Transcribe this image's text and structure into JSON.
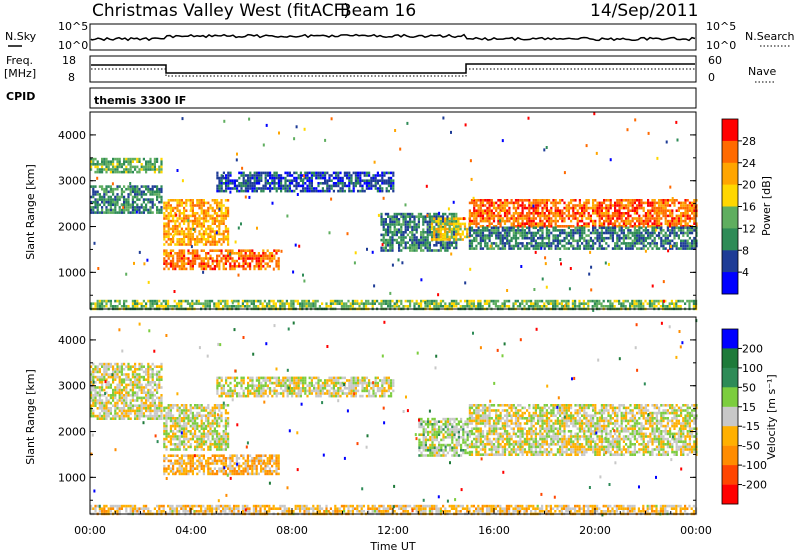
{
  "header": {
    "site": "Christmas Valley West (fitACF)",
    "beam": "Beam 16",
    "date": "14/Sep/2011"
  },
  "top_panels": {
    "nsky_label": "N.Sky",
    "nsky_ticks": [
      "10^5",
      "10^0"
    ],
    "nsearch_label": "N.Search",
    "nsearch_ticks": [
      "10^5",
      "10^0"
    ],
    "freq_label_1": "Freq.",
    "freq_label_2": "[MHz]",
    "freq_ticks": [
      "18",
      "8"
    ],
    "nave_label": "Nave",
    "nave_ticks": [
      "60",
      "0"
    ],
    "cpid_label": "CPID",
    "cpid_value": "themis 3300 IF"
  },
  "colors": {
    "power_scale": [
      "#0000ff",
      "#1e3c96",
      "#2e8b57",
      "#5fae5f",
      "#ffd700",
      "#ffa500",
      "#ff6a00",
      "#ff0000"
    ],
    "velocity_scale": [
      "#ff0000",
      "#ff4500",
      "#ff8c00",
      "#ffb000",
      "#c8c8c8",
      "#7ccd3e",
      "#2e8b57",
      "#1e7a3a",
      "#0000ff"
    ]
  },
  "chart_data": [
    {
      "type": "heatmap",
      "name": "power",
      "ylabel": "Slant Range [km]",
      "y_ticks": [
        "1000",
        "2000",
        "3000",
        "4000"
      ],
      "ylim": [
        200,
        4500
      ],
      "xlim": [
        0,
        24
      ],
      "colorbar_label": "Power [dB]",
      "colorbar_ticks": [
        "4",
        "8",
        "12",
        "16",
        "20",
        "24",
        "28"
      ],
      "regions": [
        {
          "t0": 0.0,
          "t1": 2.8,
          "r0": 3200,
          "r1": 3500,
          "value": 13
        },
        {
          "t0": 0.0,
          "t1": 2.8,
          "r0": 2300,
          "r1": 2900,
          "value": 10
        },
        {
          "t0": 2.9,
          "t1": 5.5,
          "r0": 1600,
          "r1": 2600,
          "value": 22
        },
        {
          "t0": 2.9,
          "t1": 7.5,
          "r0": 1100,
          "r1": 1500,
          "value": 25
        },
        {
          "t0": 5.0,
          "t1": 12.0,
          "r0": 2800,
          "r1": 3200,
          "value": 6
        },
        {
          "t0": 11.5,
          "t1": 14.5,
          "r0": 1500,
          "r1": 2300,
          "value": 10
        },
        {
          "t0": 13.5,
          "t1": 15.0,
          "r0": 1700,
          "r1": 2200,
          "value": 18
        },
        {
          "t0": 15.0,
          "t1": 24.0,
          "r0": 2000,
          "r1": 2600,
          "value": 26
        },
        {
          "t0": 15.0,
          "t1": 24.0,
          "r0": 1500,
          "r1": 2000,
          "value": 9
        },
        {
          "t0": 0.0,
          "t1": 24.0,
          "r0": 200,
          "r1": 400,
          "value": 14
        }
      ]
    },
    {
      "type": "heatmap",
      "name": "velocity",
      "ylabel": "Slant Range [km]",
      "y_ticks": [
        "1000",
        "2000",
        "3000",
        "4000"
      ],
      "ylim": [
        200,
        4500
      ],
      "xlim": [
        0,
        24
      ],
      "xlabel": "Time UT",
      "x_ticks": [
        "00:00",
        "04:00",
        "08:00",
        "12:00",
        "16:00",
        "20:00",
        "00:00"
      ],
      "colorbar_label": "Velocity [m s⁻¹]",
      "colorbar_ticks": [
        "200",
        "100",
        "50",
        "15",
        "-15",
        "-50",
        "-100",
        "-200"
      ],
      "regions": [
        {
          "t0": 0.0,
          "t1": 2.8,
          "r0": 2300,
          "r1": 3500,
          "value": 0
        },
        {
          "t0": 2.9,
          "t1": 5.5,
          "r0": 1600,
          "r1": 2600,
          "value": 0
        },
        {
          "t0": 2.9,
          "t1": 7.5,
          "r0": 1100,
          "r1": 1500,
          "value": -60
        },
        {
          "t0": 5.0,
          "t1": 12.0,
          "r0": 2800,
          "r1": 3200,
          "value": 0
        },
        {
          "t0": 13.0,
          "t1": 15.0,
          "r0": 1500,
          "r1": 2300,
          "value": 30
        },
        {
          "t0": 15.0,
          "t1": 24.0,
          "r0": 1500,
          "r1": 2600,
          "value": 0
        },
        {
          "t0": 0.0,
          "t1": 24.0,
          "r0": 200,
          "r1": 400,
          "value": -40
        }
      ]
    }
  ]
}
